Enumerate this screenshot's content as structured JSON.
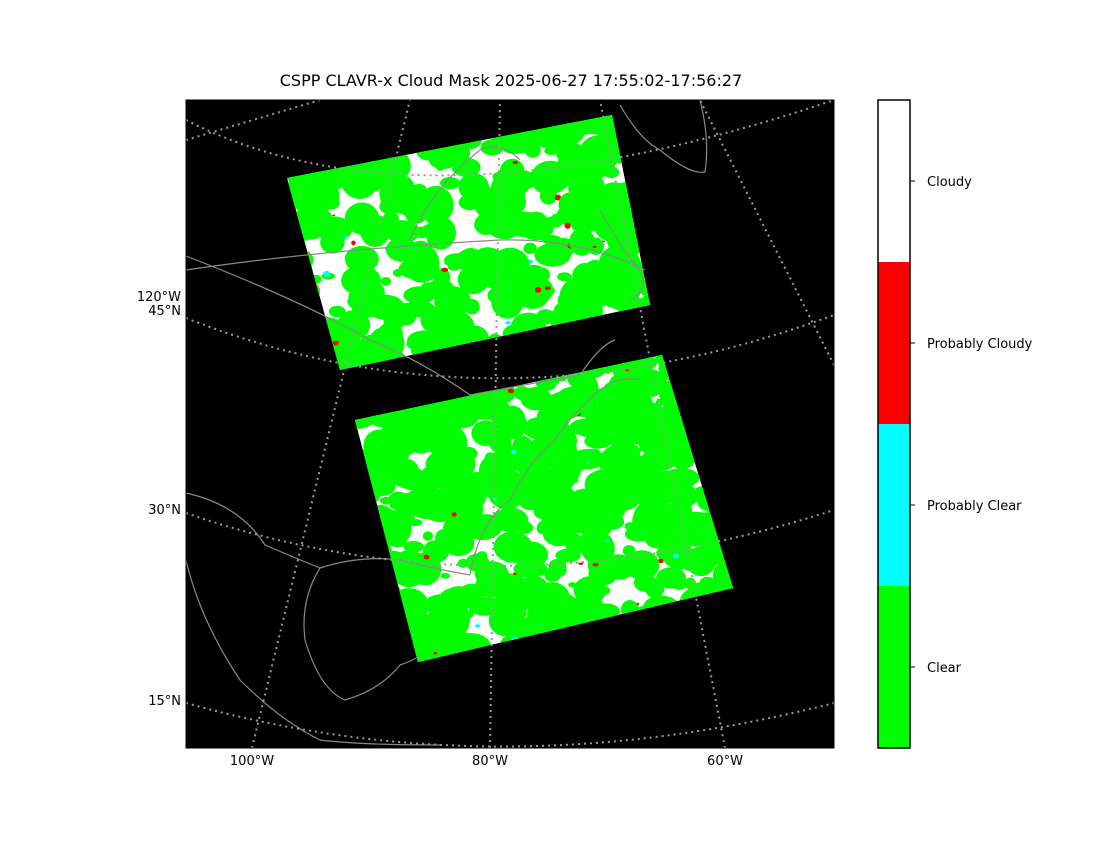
{
  "title": "CSPP CLAVR-x Cloud Mask 2025-06-27 17:55:02-17:56:27",
  "axes": {
    "left_labels": [
      "120°W",
      "45°N",
      "30°N",
      "15°N"
    ],
    "bottom_labels": [
      "100°W",
      "80°W",
      "60°W"
    ]
  },
  "legend": {
    "items": [
      {
        "label": "Cloudy",
        "color": "#ffffff"
      },
      {
        "label": "Probably Cloudy",
        "color": "#ff0000"
      },
      {
        "label": "Probably Clear",
        "color": "#00ffff"
      },
      {
        "label": "Clear",
        "color": "#00ff00"
      }
    ]
  }
}
